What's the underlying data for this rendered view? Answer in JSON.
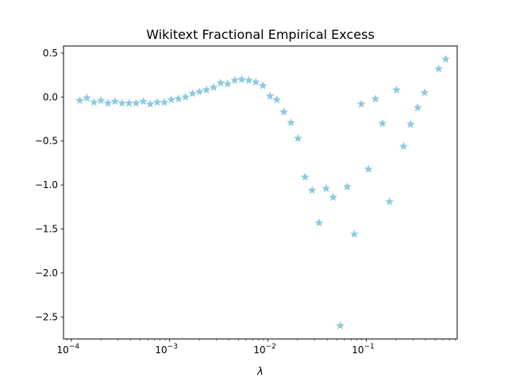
{
  "chart_data": {
    "type": "scatter",
    "title": "Wikitext Fractional Empirical Excess",
    "xlabel": "λ",
    "ylabel": "",
    "xscale": "log",
    "xlim": [
      8.33e-05,
      0.84
    ],
    "ylim": [
      -2.75,
      0.58
    ],
    "grid": false,
    "marker": "star",
    "color": "#8ec9de",
    "x_ticks": [
      {
        "value": 0.0001,
        "label": "10",
        "exp": "−4"
      },
      {
        "value": 0.001,
        "label": "10",
        "exp": "−3"
      },
      {
        "value": 0.01,
        "label": "10",
        "exp": "−2"
      },
      {
        "value": 0.1,
        "label": "10",
        "exp": "−1"
      }
    ],
    "y_ticks": [
      {
        "value": 0.5,
        "label": "0.5"
      },
      {
        "value": 0.0,
        "label": "0.0"
      },
      {
        "value": -0.5,
        "label": "−0.5"
      },
      {
        "value": -1.0,
        "label": "−1.0"
      },
      {
        "value": -1.5,
        "label": "−1.5"
      },
      {
        "value": -2.0,
        "label": "−2.0"
      },
      {
        "value": -2.5,
        "label": "−2.5"
      }
    ],
    "points": [
      {
        "x": 0.000122,
        "y": -0.04
      },
      {
        "x": 0.000144,
        "y": -0.01
      },
      {
        "x": 0.00017,
        "y": -0.06
      },
      {
        "x": 0.0002,
        "y": -0.04
      },
      {
        "x": 0.000236,
        "y": -0.07
      },
      {
        "x": 0.000278,
        "y": -0.05
      },
      {
        "x": 0.000328,
        "y": -0.07
      },
      {
        "x": 0.000387,
        "y": -0.07
      },
      {
        "x": 0.000456,
        "y": -0.07
      },
      {
        "x": 0.000538,
        "y": -0.05
      },
      {
        "x": 0.000634,
        "y": -0.08
      },
      {
        "x": 0.000748,
        "y": -0.06
      },
      {
        "x": 0.000882,
        "y": -0.06
      },
      {
        "x": 0.00104,
        "y": -0.03
      },
      {
        "x": 0.00123,
        "y": -0.02
      },
      {
        "x": 0.00145,
        "y": 0.0
      },
      {
        "x": 0.00171,
        "y": 0.04
      },
      {
        "x": 0.00201,
        "y": 0.06
      },
      {
        "x": 0.00237,
        "y": 0.08
      },
      {
        "x": 0.0028,
        "y": 0.11
      },
      {
        "x": 0.0033,
        "y": 0.16
      },
      {
        "x": 0.00389,
        "y": 0.15
      },
      {
        "x": 0.00459,
        "y": 0.19
      },
      {
        "x": 0.00541,
        "y": 0.2
      },
      {
        "x": 0.00638,
        "y": 0.19
      },
      {
        "x": 0.00752,
        "y": 0.17
      },
      {
        "x": 0.00887,
        "y": 0.13
      },
      {
        "x": 0.0105,
        "y": 0.01
      },
      {
        "x": 0.0123,
        "y": -0.03
      },
      {
        "x": 0.0145,
        "y": -0.17
      },
      {
        "x": 0.0171,
        "y": -0.29
      },
      {
        "x": 0.0202,
        "y": -0.47
      },
      {
        "x": 0.0238,
        "y": -0.91
      },
      {
        "x": 0.0281,
        "y": -1.06
      },
      {
        "x": 0.0331,
        "y": -1.43
      },
      {
        "x": 0.039,
        "y": -1.04
      },
      {
        "x": 0.046,
        "y": -1.14
      },
      {
        "x": 0.0543,
        "y": -2.6
      },
      {
        "x": 0.064,
        "y": -1.02
      },
      {
        "x": 0.0755,
        "y": -1.56
      },
      {
        "x": 0.089,
        "y": -0.08
      },
      {
        "x": 0.105,
        "y": -0.82
      },
      {
        "x": 0.124,
        "y": -0.02
      },
      {
        "x": 0.146,
        "y": -0.3
      },
      {
        "x": 0.172,
        "y": -1.19
      },
      {
        "x": 0.203,
        "y": 0.08
      },
      {
        "x": 0.239,
        "y": -0.56
      },
      {
        "x": 0.282,
        "y": -0.31
      },
      {
        "x": 0.333,
        "y": -0.12
      },
      {
        "x": 0.392,
        "y": 0.05
      },
      {
        "x": 0.545,
        "y": 0.32
      },
      {
        "x": 0.643,
        "y": 0.43
      }
    ]
  }
}
